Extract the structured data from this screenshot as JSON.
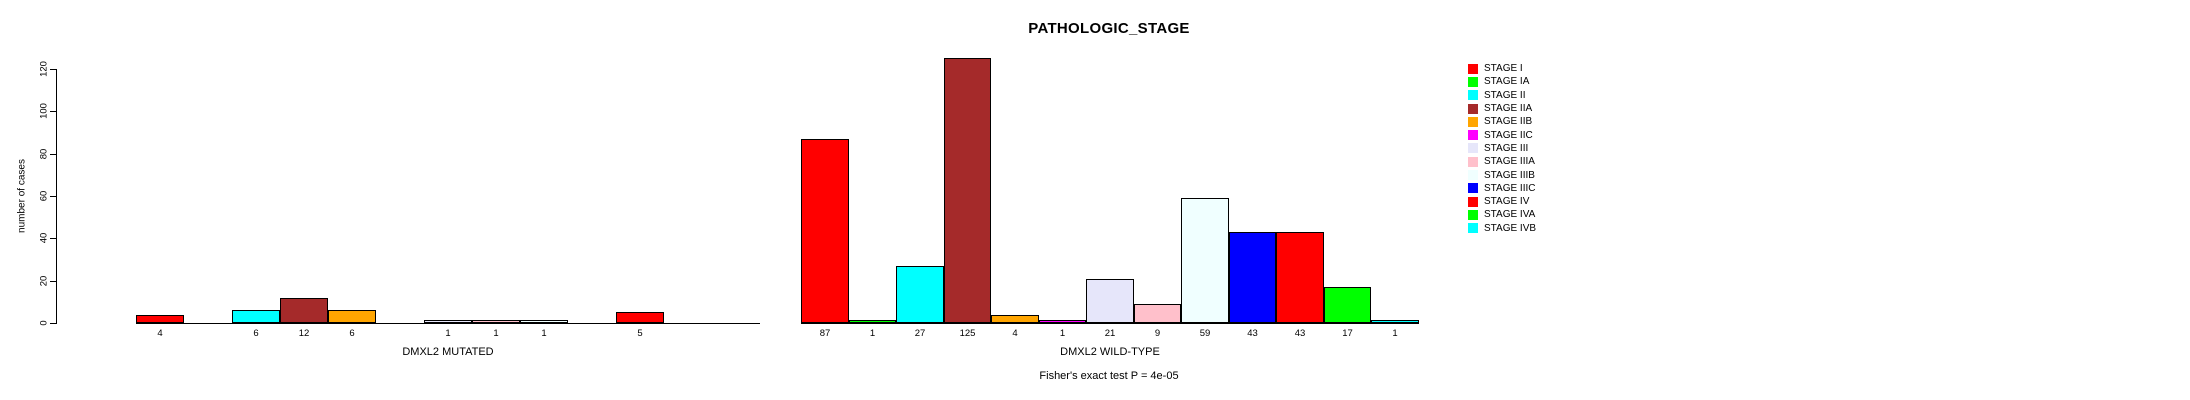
{
  "chart_data": {
    "type": "bar",
    "title": "PATHOLOGIC_STAGE",
    "ylabel": "number of cases",
    "xlabel": "",
    "ylim": [
      0,
      120
    ],
    "yticks": [
      "0",
      "20",
      "40",
      "60",
      "80",
      "100",
      "120"
    ],
    "grid": false,
    "legend_position": "right-inside",
    "categories": [
      "STAGE I",
      "STAGE IA",
      "STAGE II",
      "STAGE IIA",
      "STAGE IIB",
      "STAGE IIC",
      "STAGE III",
      "STAGE IIIA",
      "STAGE IIIB",
      "STAGE IIIC",
      "STAGE IV",
      "STAGE IVA",
      "STAGE IVB"
    ],
    "colors": [
      "#FF0000",
      "#00FF00",
      "#00FFFF",
      "#A52A2A",
      "#FFA500",
      "#FF00FF",
      "#E6E6FA",
      "#FFC0CB",
      "#F0FFFF",
      "#0000FF",
      "#FF0000",
      "#00FF00",
      "#00FFFF"
    ],
    "series": [
      {
        "name": "DMXL2 MUTATED",
        "values": [
          4,
          0,
          6,
          12,
          6,
          0,
          1,
          1,
          1,
          0,
          5,
          0,
          0
        ]
      },
      {
        "name": "DMXL2 WILD-TYPE",
        "values": [
          87,
          1,
          27,
          125,
          4,
          1,
          21,
          9,
          59,
          43,
          43,
          17,
          1
        ]
      }
    ],
    "bar_labels": "values shown under each nonzero bar",
    "annotation": "Fisher's exact test P = 4e-05"
  },
  "style_colors": {
    "axis": "#000000",
    "bar_border": "#000000",
    "background": "#FFFFFF"
  }
}
